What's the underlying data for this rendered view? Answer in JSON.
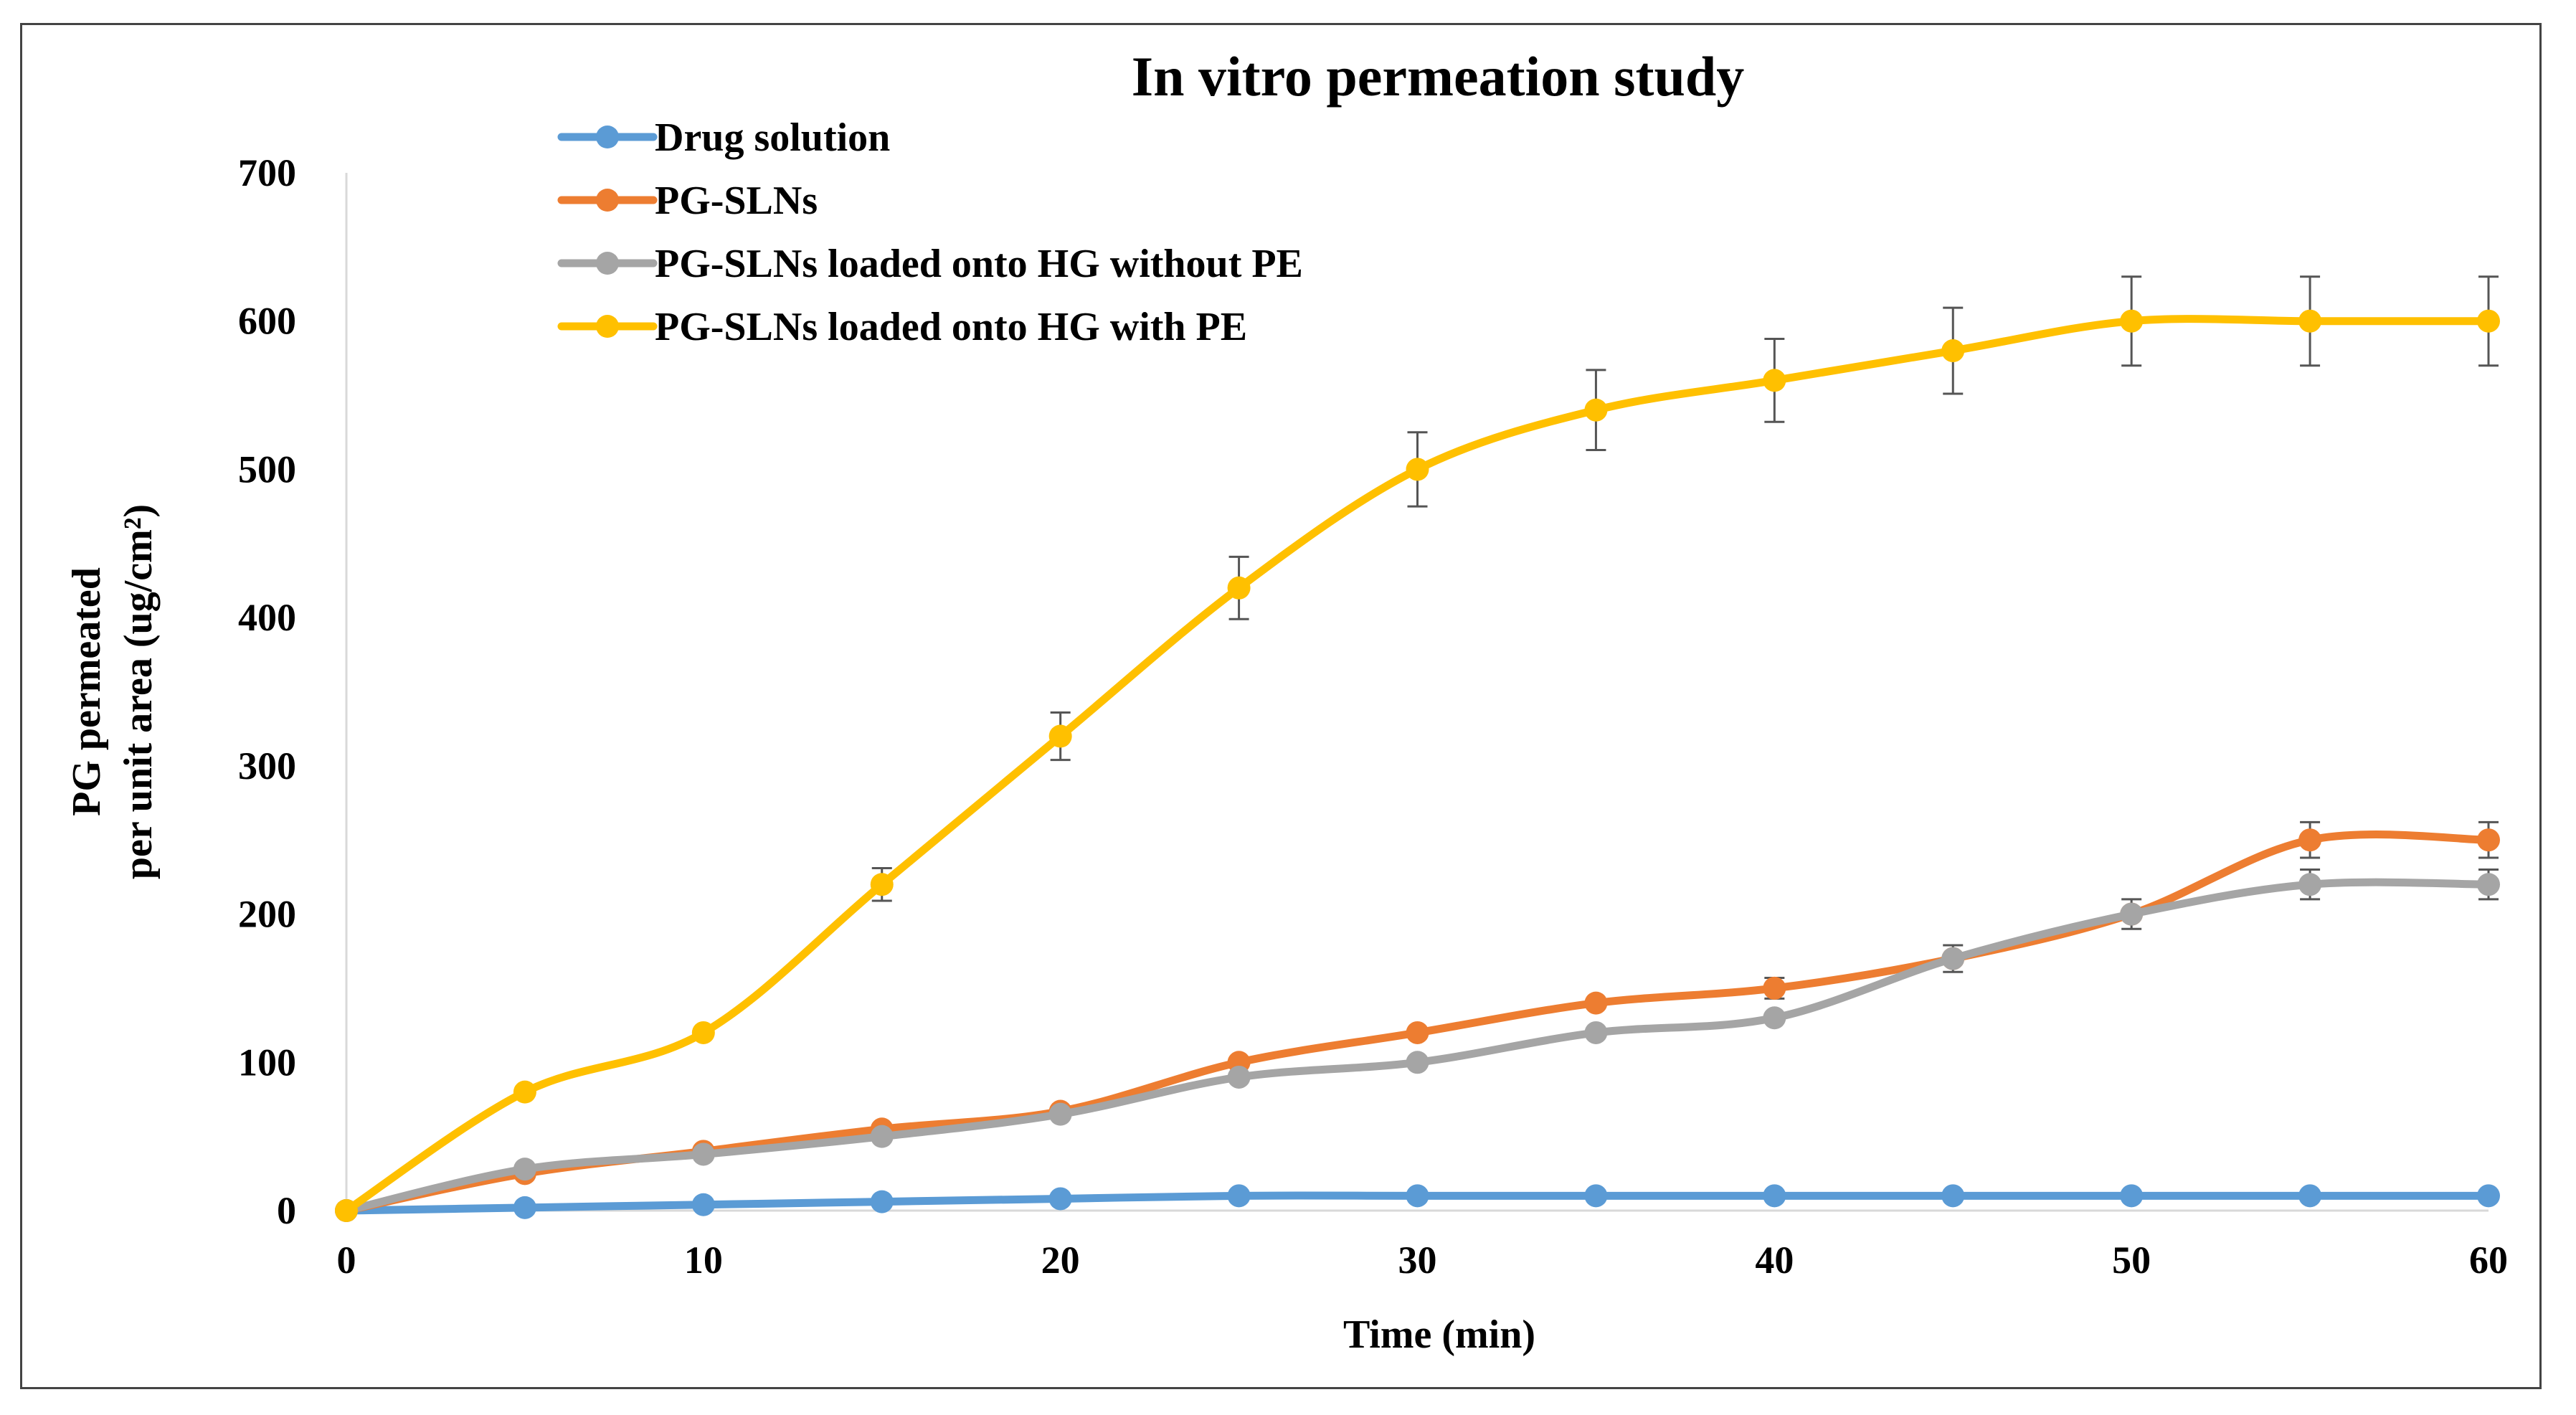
{
  "chart_data": {
    "type": "line",
    "title": "In vitro permeation study",
    "xlabel": "Time (min)",
    "ylabel_line1": "PG  permeated",
    "ylabel_line2": "per unit area (ug/cm²)",
    "xlim": [
      0,
      60
    ],
    "ylim": [
      0,
      700
    ],
    "xticks": [
      0,
      10,
      20,
      30,
      40,
      50,
      60
    ],
    "yticks": [
      0,
      100,
      200,
      300,
      400,
      500,
      600,
      700
    ],
    "x": [
      0,
      5,
      10,
      15,
      20,
      25,
      30,
      35,
      40,
      45,
      50,
      55,
      60
    ],
    "grid": false,
    "legend_position": "top-left",
    "series": [
      {
        "name": "Drug solution",
        "color": "#5B9BD5",
        "values": [
          0,
          2,
          4,
          6,
          8,
          10,
          10,
          10,
          10,
          10,
          10,
          10,
          10
        ],
        "errors": [
          0,
          0,
          0,
          0,
          0,
          0,
          0,
          0,
          0,
          0,
          0,
          0,
          0
        ]
      },
      {
        "name": "PG-SLNs",
        "color": "#ED7D31",
        "values": [
          0,
          25,
          40,
          55,
          67,
          100,
          120,
          140,
          150,
          170,
          200,
          250,
          250
        ],
        "errors": [
          0,
          0,
          0,
          0,
          0,
          0,
          0,
          0,
          7,
          0,
          0,
          12,
          12
        ]
      },
      {
        "name": "PG-SLNs loaded onto HG without PE",
        "color": "#A5A5A5",
        "values": [
          0,
          28,
          38,
          50,
          65,
          90,
          100,
          120,
          130,
          170,
          200,
          220,
          220
        ],
        "errors": [
          0,
          0,
          0,
          0,
          0,
          0,
          0,
          0,
          0,
          9,
          10,
          10,
          10
        ]
      },
      {
        "name": "PG-SLNs loaded onto HG with PE",
        "color": "#FFC000",
        "values": [
          0,
          80,
          120,
          220,
          320,
          420,
          500,
          540,
          560,
          580,
          600,
          600,
          600
        ],
        "errors": [
          0,
          0,
          0,
          11,
          16,
          21,
          25,
          27,
          28,
          29,
          30,
          30,
          30
        ]
      }
    ]
  }
}
